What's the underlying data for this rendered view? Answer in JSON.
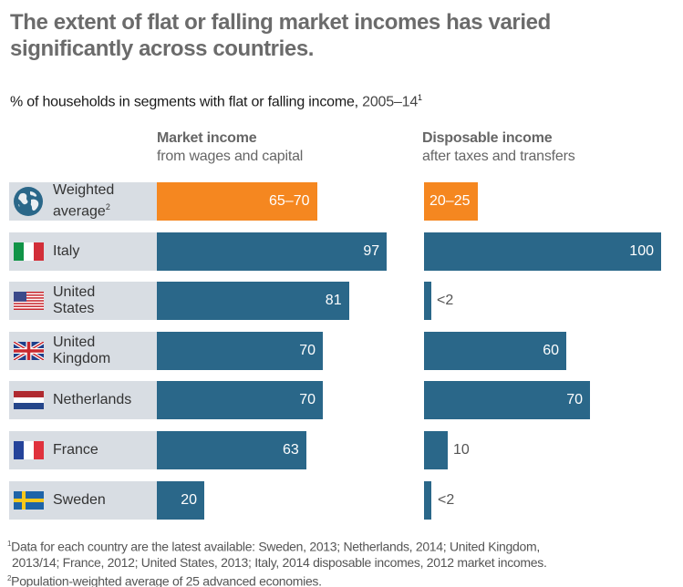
{
  "title": "The extent of flat or falling market incomes has varied significantly across countries.",
  "subtitle": {
    "text": "% of households in segments with flat or falling income,",
    "years": "2005–14",
    "note": "1"
  },
  "columns": {
    "market": {
      "title": "Market income",
      "sub": "from wages and capital"
    },
    "disposable": {
      "title": "Disposable income",
      "sub": "after taxes and transfers"
    }
  },
  "colors": {
    "average": "#f58720",
    "country": "#2a6789",
    "label_bg": "#d8dde3"
  },
  "chart_data": {
    "type": "bar",
    "title": "% of households in segments with flat or falling income, 2005–14",
    "categories": [
      "Weighted average",
      "Italy",
      "United States",
      "United Kingdom",
      "Netherlands",
      "France",
      "Sweden"
    ],
    "series": [
      {
        "name": "Market income",
        "values": [
          67.5,
          97,
          81,
          70,
          70,
          63,
          20
        ],
        "labels": [
          "65–70",
          "97",
          "81",
          "70",
          "70",
          "63",
          "20"
        ]
      },
      {
        "name": "Disposable income",
        "values": [
          22.5,
          100,
          2,
          60,
          70,
          10,
          2
        ],
        "labels": [
          "20–25",
          "100",
          "<2",
          "60",
          "70",
          "10",
          "<2"
        ]
      }
    ],
    "rows": [
      {
        "line1": "Weighted",
        "line2": "average",
        "sup": "2",
        "icon": "globe"
      },
      {
        "line1": "Italy",
        "line2": "",
        "sup": "",
        "icon": "it"
      },
      {
        "line1": "United",
        "line2": "States",
        "sup": "",
        "icon": "us"
      },
      {
        "line1": "United",
        "line2": "Kingdom",
        "sup": "",
        "icon": "uk"
      },
      {
        "line1": "Netherlands",
        "line2": "",
        "sup": "",
        "icon": "nl"
      },
      {
        "line1": "France",
        "line2": "",
        "sup": "",
        "icon": "fr"
      },
      {
        "line1": "Sweden",
        "line2": "",
        "sup": "",
        "icon": "se"
      }
    ]
  },
  "footnotes": [
    {
      "mark": "1",
      "text": "Data for each country are the latest available: Sweden, 2013; Netherlands, 2014; United Kingdom,"
    },
    {
      "mark": "",
      "text": "2013/14; France, 2012; United States, 2013; Italy, 2014 disposable incomes, 2012 market incomes."
    },
    {
      "mark": "2",
      "text": "Population-weighted average of 25 advanced economies."
    }
  ]
}
